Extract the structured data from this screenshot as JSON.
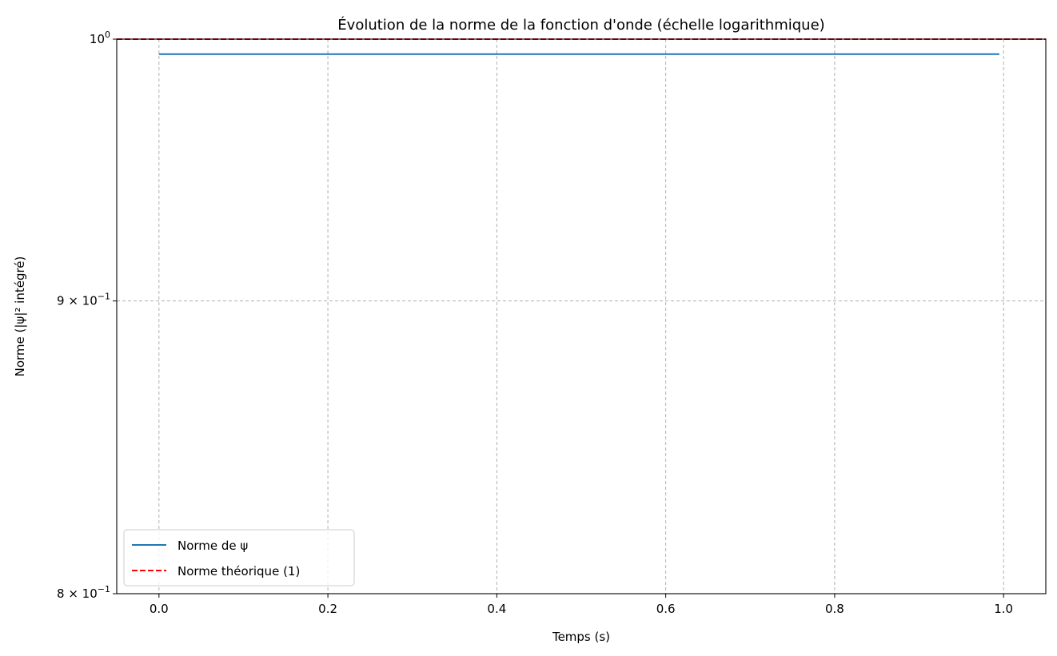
{
  "chart_data": {
    "type": "line",
    "title": "Évolution de la norme de la fonction d'onde (échelle logarithmique)",
    "xlabel": "Temps (s)",
    "ylabel": "Norme (|ψ|² intégré)",
    "yscale": "log",
    "xlim": [
      -0.05,
      1.05
    ],
    "ylim": [
      0.8,
      1.0
    ],
    "grid": true,
    "legend_position": "lower-left",
    "x_ticks": [
      0.0,
      0.2,
      0.4,
      0.6,
      0.8,
      1.0
    ],
    "x_tick_labels": [
      "0.0",
      "0.2",
      "0.4",
      "0.6",
      "0.8",
      "1.0"
    ],
    "y_ticks": [
      0.8,
      0.9,
      1.0
    ],
    "y_tick_labels": [
      {
        "mantissa": "8",
        "exponent": "−1"
      },
      {
        "mantissa": "9",
        "exponent": "−1"
      },
      {
        "mantissa": "",
        "exponent": "0"
      }
    ],
    "series": [
      {
        "name": "Norme de ψ",
        "color": "#1f77b4",
        "style": "solid",
        "x": [
          0.0,
          0.2,
          0.4,
          0.6,
          0.8,
          0.995
        ],
        "y": [
          0.994,
          0.994,
          0.994,
          0.994,
          0.994,
          0.994
        ]
      },
      {
        "name": "Norme théorique (1)",
        "color": "#ff0000",
        "style": "dashed",
        "x": [
          -0.05,
          1.05
        ],
        "y": [
          1.0,
          1.0
        ]
      }
    ]
  }
}
